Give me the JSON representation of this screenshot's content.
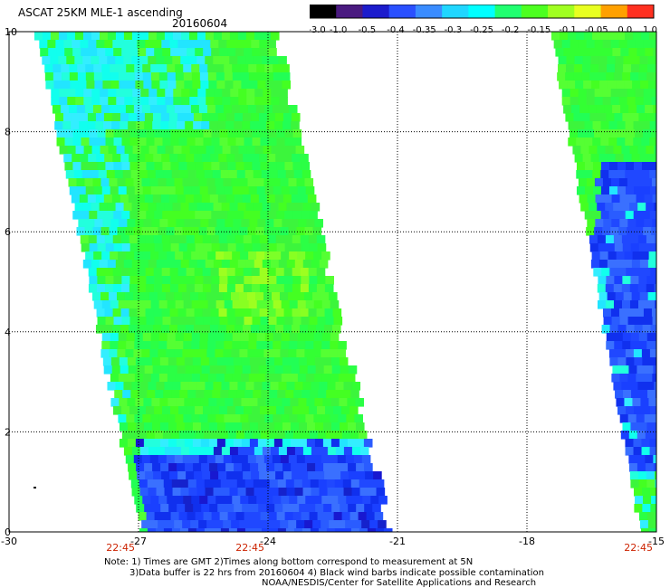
{
  "header": {
    "title": "ASCAT 25KM MLE-1 ascending",
    "date": "20160604"
  },
  "colorbar": {
    "ticks": [
      "-3.0",
      "-1.0",
      "-0.5",
      "-0.4",
      "-0.35",
      "-0.3",
      "-0.25",
      "-0.2",
      "-0.15",
      "-0.1",
      "-0.05",
      "0.0",
      "1.0"
    ],
    "colors": [
      "#000000",
      "#4a1a80",
      "#1c1ccc",
      "#2a50ff",
      "#3a8cff",
      "#20d6ff",
      "#00ffff",
      "#20ff70",
      "#4cff20",
      "#a0ff20",
      "#e8ff20",
      "#ffa000",
      "#ff3020"
    ]
  },
  "axes": {
    "x_ticks": [
      "-30",
      "-27",
      "-24",
      "-21",
      "-18",
      "-15"
    ],
    "y_ticks": [
      "0",
      "2",
      "4",
      "6",
      "8",
      "10"
    ],
    "time_labels": [
      {
        "lon": "-27",
        "text": "22:45"
      },
      {
        "lon": "-24",
        "text": "22:45"
      },
      {
        "lon": "-15",
        "text": "22:45"
      }
    ],
    "time_color": "#cc2200"
  },
  "notes": {
    "line1": "Note: 1) Times are GMT 2)Times along bottom correspond to measurement at 5N",
    "line2": "3)Data buffer is 22 hrs from 20160604 4) Black wind barbs indicate possible contamination",
    "line3": "NOAA/NESDIS/Center for Satellite Applications and Research"
  }
}
